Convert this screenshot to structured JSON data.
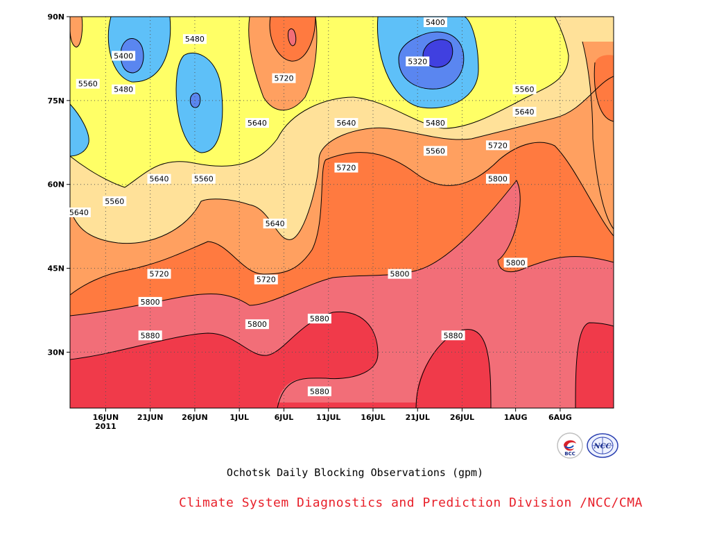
{
  "chart_data": {
    "type": "heatmap",
    "title": "Ochotsk Daily Blocking Observations (gpm)",
    "credit": "Climate System Diagnostics and Prediction Division /NCC/CMA",
    "x_ticks": [
      "16JUN",
      "21JUN",
      "26JUN",
      "1JUL",
      "6JUL",
      "11JUL",
      "16JUL",
      "21JUL",
      "26JUL",
      "1AUG",
      "6AUG"
    ],
    "x_year_label": "2011",
    "x_range": [
      "2011-06-12",
      "2011-08-12"
    ],
    "y_ticks": [
      "30N",
      "45N",
      "60N",
      "75N",
      "90N"
    ],
    "ylim": [
      20,
      90
    ],
    "contour_levels": [
      5320,
      5400,
      5480,
      5560,
      5640,
      5720,
      5800,
      5880
    ],
    "fill_colors": {
      "below_5320": "#4040e0",
      "5320_5400": "#5a86f0",
      "5400_5480": "#5ec0f8",
      "5480_5560": "#ffff66",
      "5560_5640": "#ffe199",
      "5640_5720": "#ffa060",
      "5720_5800": "#ff7a40",
      "5800_5880": "#f26e78",
      "above_5880": "#f03a4a"
    },
    "contour_labels": [
      {
        "text": "5400",
        "date": "2011-06-18",
        "lat": 83
      },
      {
        "text": "5480",
        "date": "2011-06-18",
        "lat": 77
      },
      {
        "text": "5560",
        "date": "2011-06-14",
        "lat": 78
      },
      {
        "text": "5480",
        "date": "2011-06-26",
        "lat": 86
      },
      {
        "text": "5720",
        "date": "2011-07-06",
        "lat": 79
      },
      {
        "text": "5640",
        "date": "2011-07-03",
        "lat": 71
      },
      {
        "text": "5400",
        "date": "2011-07-23",
        "lat": 89
      },
      {
        "text": "5320",
        "date": "2011-07-21",
        "lat": 82
      },
      {
        "text": "5480",
        "date": "2011-07-23",
        "lat": 71
      },
      {
        "text": "5560",
        "date": "2011-07-23",
        "lat": 66
      },
      {
        "text": "5640",
        "date": "2011-07-13",
        "lat": 71
      },
      {
        "text": "5720",
        "date": "2011-07-13",
        "lat": 63
      },
      {
        "text": "5560",
        "date": "2011-08-02",
        "lat": 77
      },
      {
        "text": "5640",
        "date": "2011-08-02",
        "lat": 73
      },
      {
        "text": "5720",
        "date": "2011-07-30",
        "lat": 67
      },
      {
        "text": "5800",
        "date": "2011-07-30",
        "lat": 61
      },
      {
        "text": "5640",
        "date": "2011-06-22",
        "lat": 61
      },
      {
        "text": "5560",
        "date": "2011-06-27",
        "lat": 61
      },
      {
        "text": "5560",
        "date": "2011-06-17",
        "lat": 57
      },
      {
        "text": "5640",
        "date": "2011-06-13",
        "lat": 55
      },
      {
        "text": "5640",
        "date": "2011-07-05",
        "lat": 53
      },
      {
        "text": "5720",
        "date": "2011-06-22",
        "lat": 44
      },
      {
        "text": "5720",
        "date": "2011-07-04",
        "lat": 43
      },
      {
        "text": "5800",
        "date": "2011-07-19",
        "lat": 44
      },
      {
        "text": "5800",
        "date": "2011-08-01",
        "lat": 46
      },
      {
        "text": "5800",
        "date": "2011-06-21",
        "lat": 39
      },
      {
        "text": "5800",
        "date": "2011-07-03",
        "lat": 35
      },
      {
        "text": "5880",
        "date": "2011-07-10",
        "lat": 36
      },
      {
        "text": "5880",
        "date": "2011-06-21",
        "lat": 33
      },
      {
        "text": "5880",
        "date": "2011-07-25",
        "lat": 33
      },
      {
        "text": "5880",
        "date": "2011-07-10",
        "lat": 23
      }
    ]
  },
  "logos": {
    "left": {
      "icon": "bcc-logo",
      "text": "BCC"
    },
    "right": {
      "icon": "ncc-logo",
      "text": "NCC"
    }
  }
}
